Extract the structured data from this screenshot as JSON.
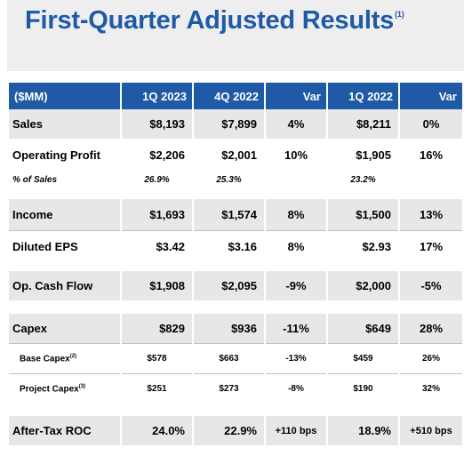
{
  "title": {
    "text": "First-Quarter Adjusted Results",
    "footnote": "(1)"
  },
  "columns": [
    "($MM)",
    "1Q 2023",
    "4Q 2022",
    "Var",
    "1Q 2022",
    "Var"
  ],
  "rows": {
    "sales": [
      "Sales",
      "$8,193",
      "$7,899",
      "4%",
      "$8,211",
      "0%"
    ],
    "op_profit": [
      "Operating Profit",
      "$2,206",
      "$2,001",
      "10%",
      "$1,905",
      "16%"
    ],
    "pct_sales": [
      "% of Sales",
      "26.9%",
      "25.3%",
      "",
      "23.2%",
      ""
    ],
    "income": [
      "Income",
      "$1,693",
      "$1,574",
      "8%",
      "$1,500",
      "13%"
    ],
    "eps": [
      "Diluted EPS",
      "$3.42",
      "$3.16",
      "8%",
      "$2.93",
      "17%"
    ],
    "opcf": [
      "Op. Cash Flow",
      "$1,908",
      "$2,095",
      "-9%",
      "$2,000",
      "-5%"
    ],
    "capex": [
      "Capex",
      "$829",
      "$936",
      "-11%",
      "$649",
      "28%"
    ],
    "base_capex": [
      "Base Capex",
      "$578",
      "$663",
      "-13%",
      "$459",
      "26%"
    ],
    "project_capex": [
      "Project Capex",
      "$251",
      "$273",
      "-8%",
      "$190",
      "32%"
    ],
    "roc": [
      "After-Tax ROC",
      "24.0%",
      "22.9%",
      "+110 bps",
      "18.9%",
      "+510 bps"
    ]
  },
  "footnotes": {
    "base_capex": "(2)",
    "project_capex": "(3)"
  },
  "colors": {
    "header_bg": "#1f5aa6",
    "title": "#1f5aa6",
    "row_shade": "#e7e7e7"
  }
}
